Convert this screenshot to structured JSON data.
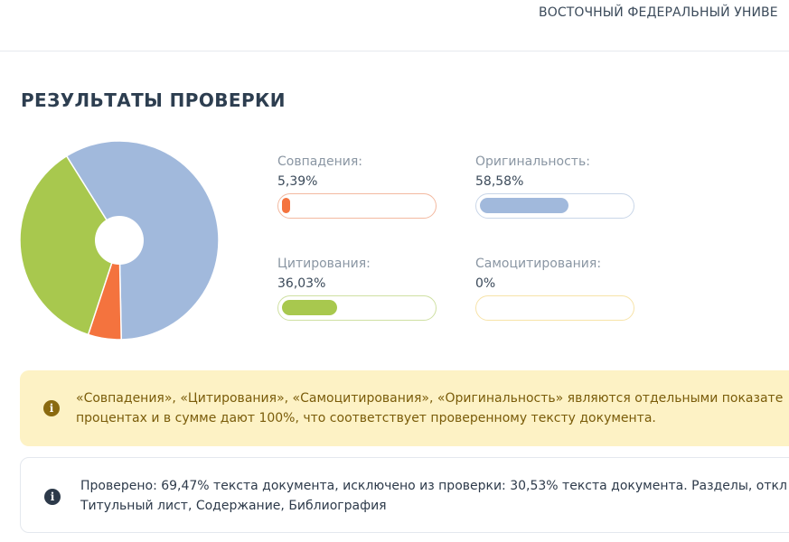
{
  "header": {
    "org_name": "ВОСТОЧНЫЙ ФЕДЕРАЛЬНЫЙ УНИВЕ"
  },
  "results": {
    "title": "РЕЗУЛЬТАТЫ ПРОВЕРКИ",
    "metrics": [
      {
        "key": "matches",
        "label": "Совпадения:",
        "value": "5,39%",
        "percent": 5.39,
        "color": "#f4733e",
        "border": "#f3b9a0"
      },
      {
        "key": "originality",
        "label": "Оригинальность:",
        "value": "58,58%",
        "percent": 58.58,
        "color": "#a1b9dc",
        "border": "#c9d6e8"
      },
      {
        "key": "citations",
        "label": "Цитирования:",
        "value": "36,03%",
        "percent": 36.03,
        "color": "#a8c84e",
        "border": "#cfe0a2"
      },
      {
        "key": "self_citations",
        "label": "Самоцитирования:",
        "value": "0%",
        "percent": 0,
        "color": "#f7d774",
        "border": "#f7e3a8"
      }
    ]
  },
  "notices": {
    "info_summary_line1": "«Совпадения», «Цитирования», «Самоцитирования», «Оригинальность» являются отдельными показате",
    "info_summary_line2": "процентах и в сумме дают 100%, что соответствует проверенному тексту документа.",
    "checked_line1": "Проверено: 69,47% текста документа, исключено из проверки: 30,53% текста документа. Разделы, откл",
    "checked_line2": "Титульный лист, Содержание, Библиография"
  },
  "icons": {
    "info": "info-icon"
  }
}
